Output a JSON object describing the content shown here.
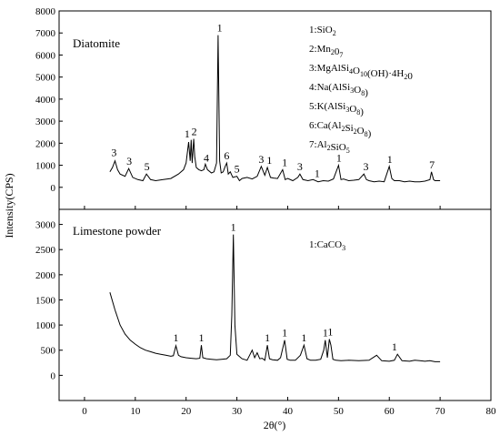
{
  "chart_data": {
    "type": "line",
    "x_label": "2θ(°)",
    "y_label": "Intensity(CPS)",
    "x_ticks": [
      0,
      10,
      20,
      30,
      40,
      50,
      60,
      70,
      80
    ],
    "xlim": [
      -5,
      80
    ],
    "panels": [
      {
        "name": "Diatomite",
        "ylim": [
          -1000,
          8000
        ],
        "y_ticks": [
          0,
          1000,
          2000,
          3000,
          4000,
          5000,
          6000,
          7000,
          8000
        ],
        "legend": [
          {
            "num": "1:",
            "parts": [
              {
                "t": "SiO"
              },
              {
                "t": "2",
                "s": "sub"
              }
            ]
          },
          {
            "num": "2:",
            "parts": [
              {
                "t": "Mn"
              },
              {
                "t": "2",
                "s": "sub"
              },
              {
                "t": "0"
              },
              {
                "t": "7",
                "s": "sub"
              }
            ]
          },
          {
            "num": "3:",
            "parts": [
              {
                "t": "MgAlSi"
              },
              {
                "t": "4",
                "s": "sub"
              },
              {
                "t": "O"
              },
              {
                "t": "10",
                "s": "sub"
              },
              {
                "t": "(OH)·4H"
              },
              {
                "t": "2",
                "s": "sub"
              },
              {
                "t": "0"
              }
            ]
          },
          {
            "num": "4:",
            "parts": [
              {
                "t": "Na(AlSi"
              },
              {
                "t": "3",
                "s": "sub"
              },
              {
                "t": "O"
              },
              {
                "t": "8",
                "s": "sub"
              },
              {
                "t": ")"
              }
            ]
          },
          {
            "num": "5:",
            "parts": [
              {
                "t": "K(AlSi"
              },
              {
                "t": "3",
                "s": "sub"
              },
              {
                "t": "O"
              },
              {
                "t": "8",
                "s": "sub"
              },
              {
                "t": ")"
              }
            ]
          },
          {
            "num": "6:",
            "parts": [
              {
                "t": "Ca(Al"
              },
              {
                "t": "2",
                "s": "sub"
              },
              {
                "t": "Si"
              },
              {
                "t": "2",
                "s": "sub"
              },
              {
                "t": "O"
              },
              {
                "t": "8",
                "s": "sub"
              },
              {
                "t": ")"
              }
            ]
          },
          {
            "num": "7:",
            "parts": [
              {
                "t": "Al"
              },
              {
                "t": "2",
                "s": "sub"
              },
              {
                "t": "SiO"
              },
              {
                "t": "5",
                "s": "sub"
              }
            ]
          }
        ],
        "series": {
          "x": [
            5,
            5.5,
            6,
            6.5,
            7,
            8,
            8.7,
            9.5,
            10.5,
            11.5,
            12.2,
            13,
            14,
            15.5,
            17,
            18.5,
            19.5,
            20,
            20.5,
            20.8,
            21,
            21.2,
            21.5,
            21.7,
            22,
            22.5,
            23,
            23.5,
            23.8,
            24.2,
            25,
            25.5,
            26,
            26.3,
            26.6,
            26.9,
            27.3,
            27.7,
            28,
            28.3,
            28.7,
            29.2,
            30,
            30.5,
            31,
            32,
            33,
            34,
            34.8,
            35.5,
            36,
            36.6,
            37.2,
            38,
            39,
            39.5,
            40,
            41,
            42,
            42.4,
            43,
            44,
            45,
            46,
            47,
            48,
            49,
            50,
            50.5,
            51,
            52,
            53,
            54,
            55,
            55.5,
            56,
            57,
            58,
            59,
            60,
            60.5,
            61,
            62,
            63,
            64,
            65,
            66,
            67,
            68,
            68.3,
            68.7,
            69,
            70
          ],
          "y": [
            700,
            900,
            1200,
            800,
            600,
            500,
            850,
            450,
            350,
            300,
            600,
            350,
            300,
            350,
            400,
            600,
            800,
            1100,
            2050,
            1200,
            2150,
            1100,
            2200,
            1400,
            900,
            800,
            750,
            800,
            1050,
            800,
            650,
            700,
            1100,
            6900,
            1200,
            650,
            700,
            950,
            1100,
            600,
            700,
            450,
            500,
            300,
            400,
            450,
            380,
            500,
            950,
            550,
            900,
            450,
            420,
            400,
            800,
            350,
            400,
            300,
            450,
            600,
            350,
            300,
            350,
            250,
            300,
            280,
            380,
            1000,
            350,
            380,
            300,
            320,
            350,
            600,
            350,
            300,
            250,
            280,
            250,
            950,
            400,
            300,
            300,
            250,
            280,
            250,
            250,
            280,
            350,
            700,
            350,
            300,
            300
          ]
        },
        "peak_labels": [
          {
            "text": "3",
            "x": 5.8,
            "y": 1250
          },
          {
            "text": "3",
            "x": 8.8,
            "y": 850
          },
          {
            "text": "5",
            "x": 12.3,
            "y": 600
          },
          {
            "text": "1",
            "x": 20.2,
            "y": 2100
          },
          {
            "text": "2",
            "x": 21.6,
            "y": 2200
          },
          {
            "text": "4",
            "x": 24.0,
            "y": 1000
          },
          {
            "text": "1",
            "x": 26.6,
            "y": 6900
          },
          {
            "text": "6",
            "x": 28.0,
            "y": 1100
          },
          {
            "text": "5",
            "x": 30.0,
            "y": 500
          },
          {
            "text": "3",
            "x": 34.8,
            "y": 950
          },
          {
            "text": "1",
            "x": 36.4,
            "y": 900
          },
          {
            "text": "1",
            "x": 39.4,
            "y": 800
          },
          {
            "text": "3",
            "x": 42.4,
            "y": 600
          },
          {
            "text": "1",
            "x": 45.8,
            "y": 300
          },
          {
            "text": "1",
            "x": 50.1,
            "y": 1000
          },
          {
            "text": "3",
            "x": 55.4,
            "y": 600
          },
          {
            "text": "1",
            "x": 60.1,
            "y": 950
          },
          {
            "text": "7",
            "x": 68.4,
            "y": 700
          }
        ]
      },
      {
        "name": "Limestone powder",
        "ylim": [
          -500,
          3300
        ],
        "y_ticks": [
          0,
          500,
          1000,
          1500,
          2000,
          2500,
          3000
        ],
        "legend": [
          {
            "num": "1:",
            "parts": [
              {
                "t": "CaCO"
              },
              {
                "t": "3",
                "s": "sub"
              }
            ]
          }
        ],
        "series": {
          "x": [
            5,
            6,
            7,
            8,
            9,
            10,
            11,
            12,
            13,
            14,
            15,
            16,
            17,
            17.5,
            18,
            18.5,
            19,
            20,
            21,
            22,
            22.7,
            23,
            23.3,
            24,
            25,
            26,
            27,
            28,
            28.7,
            29,
            29.3,
            29.6,
            30,
            31,
            32,
            33,
            33.5,
            34,
            34.5,
            35,
            35.5,
            36,
            36.4,
            37,
            38,
            38.6,
            39.4,
            39.9,
            40.5,
            41.5,
            42.5,
            43.2,
            43.8,
            44.5,
            45.5,
            46.5,
            47.1,
            47.4,
            47.8,
            48.2,
            48.5,
            48.9,
            49.5,
            50.5,
            52,
            54,
            56,
            57.5,
            58.5,
            60,
            61,
            61.6,
            62.5,
            64,
            65,
            66,
            67,
            68,
            69,
            70
          ],
          "y": [
            1650,
            1300,
            1000,
            820,
            700,
            620,
            550,
            500,
            470,
            440,
            420,
            400,
            380,
            390,
            590,
            400,
            370,
            350,
            340,
            330,
            340,
            600,
            350,
            330,
            320,
            310,
            320,
            330,
            400,
            1200,
            2800,
            1000,
            420,
            330,
            300,
            500,
            350,
            450,
            330,
            340,
            300,
            600,
            330,
            310,
            300,
            350,
            700,
            320,
            300,
            300,
            400,
            600,
            330,
            300,
            300,
            320,
            500,
            700,
            350,
            720,
            600,
            320,
            300,
            290,
            300,
            290,
            300,
            400,
            290,
            280,
            300,
            420,
            290,
            280,
            300,
            290,
            280,
            290,
            270,
            270
          ]
        },
        "peak_labels": [
          {
            "text": "1",
            "x": 18.0,
            "y": 600
          },
          {
            "text": "1",
            "x": 23.0,
            "y": 600
          },
          {
            "text": "1",
            "x": 29.3,
            "y": 2800
          },
          {
            "text": "1",
            "x": 36.0,
            "y": 600
          },
          {
            "text": "1",
            "x": 39.4,
            "y": 700
          },
          {
            "text": "1",
            "x": 43.2,
            "y": 600
          },
          {
            "text": "1",
            "x": 47.4,
            "y": 700
          },
          {
            "text": "1",
            "x": 48.4,
            "y": 720
          },
          {
            "text": "1",
            "x": 61.0,
            "y": 420
          }
        ]
      }
    ]
  }
}
